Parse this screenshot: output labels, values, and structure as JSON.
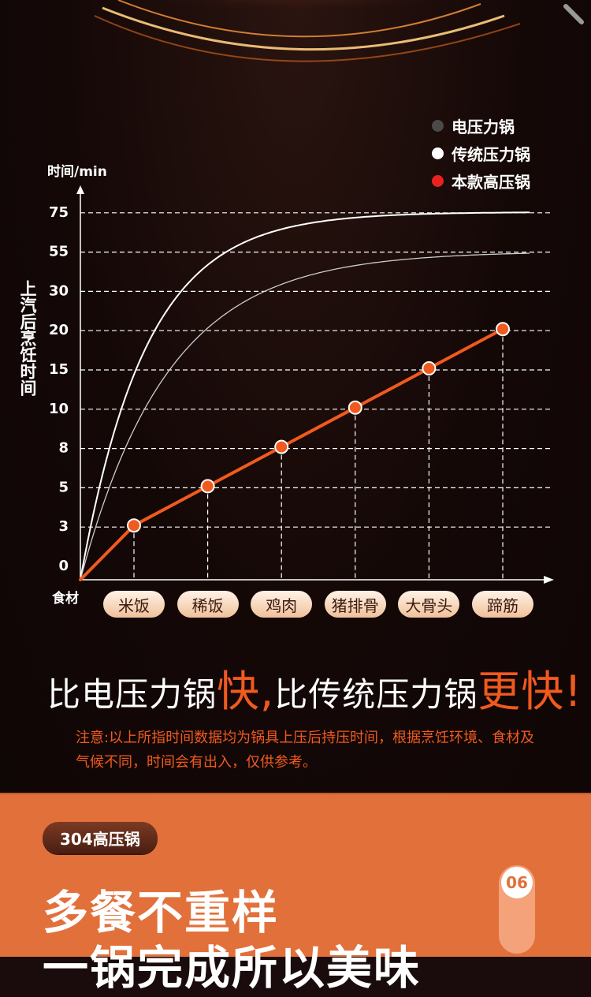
{
  "legend": {
    "items": [
      {
        "label": "电压力锅",
        "color": "#4a4a4a"
      },
      {
        "label": "传统压力锅",
        "color": "#ffffff"
      },
      {
        "label": "本款高压锅",
        "color": "#e8221e"
      }
    ]
  },
  "chart_data": {
    "type": "line",
    "ylabel_top": "时间/min",
    "ylabel": "上汽后烹饪时间",
    "xlabel": "食材",
    "y_ticks": [
      "0",
      "3",
      "5",
      "8",
      "10",
      "15",
      "20",
      "30",
      "55",
      "75"
    ],
    "categories": [
      "米饭",
      "稀饭",
      "鸡肉",
      "猪排骨",
      "大骨头",
      "蹄筋"
    ],
    "series": [
      {
        "name": "本款高压锅",
        "values": [
          3,
          5,
          8,
          10,
          15,
          20
        ],
        "color": "#f05a1e"
      }
    ],
    "curves": [
      {
        "name": "传统压力锅",
        "asymptote": 75,
        "color": "#ffffff"
      },
      {
        "name": "电压力锅",
        "asymptote": 55,
        "color": "#cccccc"
      }
    ],
    "grid": "dashed"
  },
  "headline": {
    "part1": "比电压力锅",
    "hl1": "快,",
    "part2": "比传统压力锅",
    "hl2": "更快!"
  },
  "note": "注意:以上所指时间数据均为锅具上压后持压时间，根据烹饪环境、食材及气候不同，时间会有出入，仅供参考。",
  "section": {
    "tag": "304高压锅",
    "title1": "多餐不重样",
    "title2": "一锅完成所以美味",
    "badge": "06"
  }
}
